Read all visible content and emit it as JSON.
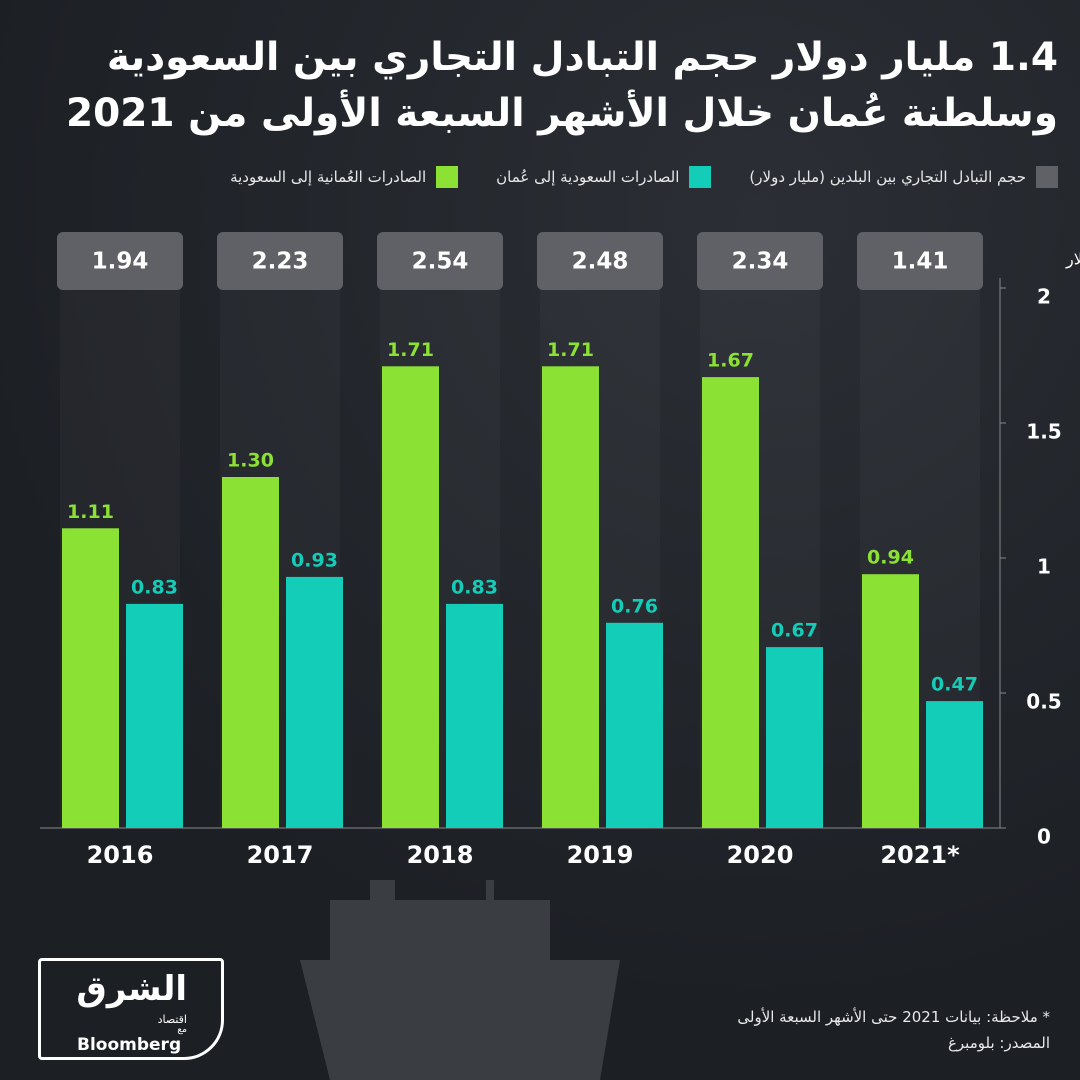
{
  "chart_data": {
    "type": "bar",
    "title": "1.4 مليار دولار حجم التبادل التجاري بين السعودية وسلطنة عُمان خلال الأشهر السبعة الأولى من 2021",
    "y_label": "مليار دولار",
    "categories": [
      "2016",
      "2017",
      "2018",
      "2019",
      "2020",
      "2021*"
    ],
    "totals": {
      "name": "حجم التبادل التجاري بين البلدين (مليار دولار)",
      "color": "#5f6166",
      "values": [
        1.94,
        2.23,
        2.54,
        2.48,
        2.34,
        1.41
      ]
    },
    "series": [
      {
        "name": "الصادرات العُمانية إلى السعودية",
        "color": "#8ce234",
        "values": [
          1.11,
          1.3,
          1.71,
          1.71,
          1.67,
          0.94
        ],
        "value_labels": [
          "1.11",
          "1.30",
          "1.71",
          "1.71",
          "1.67",
          "0.94"
        ]
      },
      {
        "name": "الصادرات السعودية إلى عُمان",
        "color": "#14cdb8",
        "values": [
          0.83,
          0.93,
          0.83,
          0.76,
          0.67,
          0.47
        ]
      }
    ],
    "ylim": [
      0,
      2
    ],
    "yticks": [
      0,
      0.5,
      1,
      1.5,
      2
    ],
    "note": "* ملاحظة: بيانات 2021 حتى الأشهر السبعة الأولى",
    "source": "المصدر: بلومبرغ",
    "logo": {
      "name": "الشرق",
      "sub": "اقتصاد",
      "with": "مع",
      "partner": "Bloomberg"
    }
  }
}
